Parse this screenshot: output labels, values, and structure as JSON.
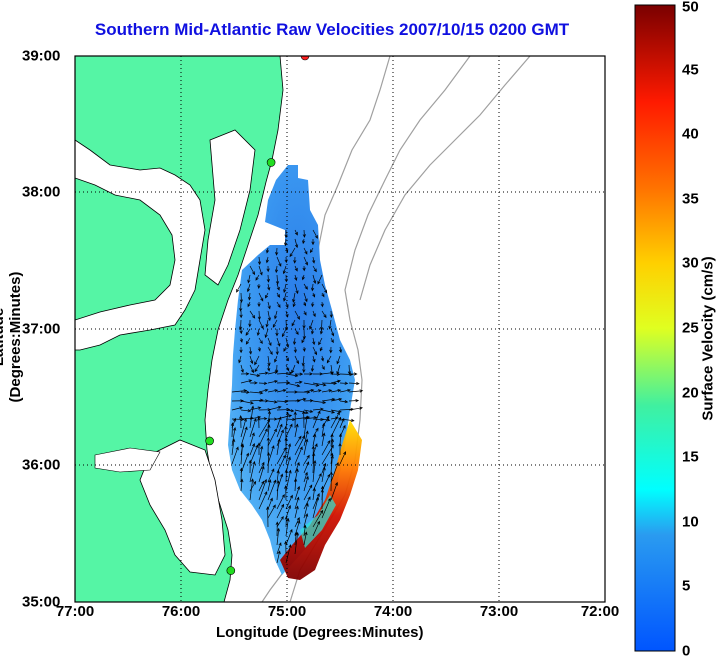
{
  "title": "Southern Mid-Atlantic Raw Velocities 2007/10/15 0200 GMT",
  "xlabel": "Longitude (Degrees:Minutes)",
  "ylabel": "Latitude (Degrees:Minutes)",
  "colorbar": {
    "label": "Surface Velocity (cm/s)",
    "range": [
      0,
      50
    ],
    "ticks": [
      "0",
      "5",
      "10",
      "15",
      "20",
      "25",
      "30",
      "35",
      "40",
      "45",
      "50"
    ]
  },
  "axes": {
    "xticks": [
      "77:00",
      "76:00",
      "75:00",
      "74:00",
      "73:00",
      "72:00"
    ],
    "yticks": [
      "39:00",
      "38:00",
      "37:00",
      "36:00",
      "35:00"
    ],
    "lon_range": [
      -77,
      -72
    ],
    "lat_range": [
      35,
      39
    ],
    "grid": "dotted"
  },
  "colors": {
    "title": "#1010e0",
    "land": "#55f5a5",
    "coastline": "#000000",
    "bathymetry": "#a0a0a0",
    "station_marker": "#22dd22",
    "station_marker_red": "#ff2020"
  },
  "map": {
    "stations": [
      {
        "lon": -74.83,
        "lat": 39.0,
        "color": "red"
      },
      {
        "lon": -75.15,
        "lat": 38.22,
        "color": "green"
      },
      {
        "lon": -75.73,
        "lat": 36.18,
        "color": "green"
      },
      {
        "lon": -75.53,
        "lat": 35.23,
        "color": "green"
      }
    ]
  }
}
